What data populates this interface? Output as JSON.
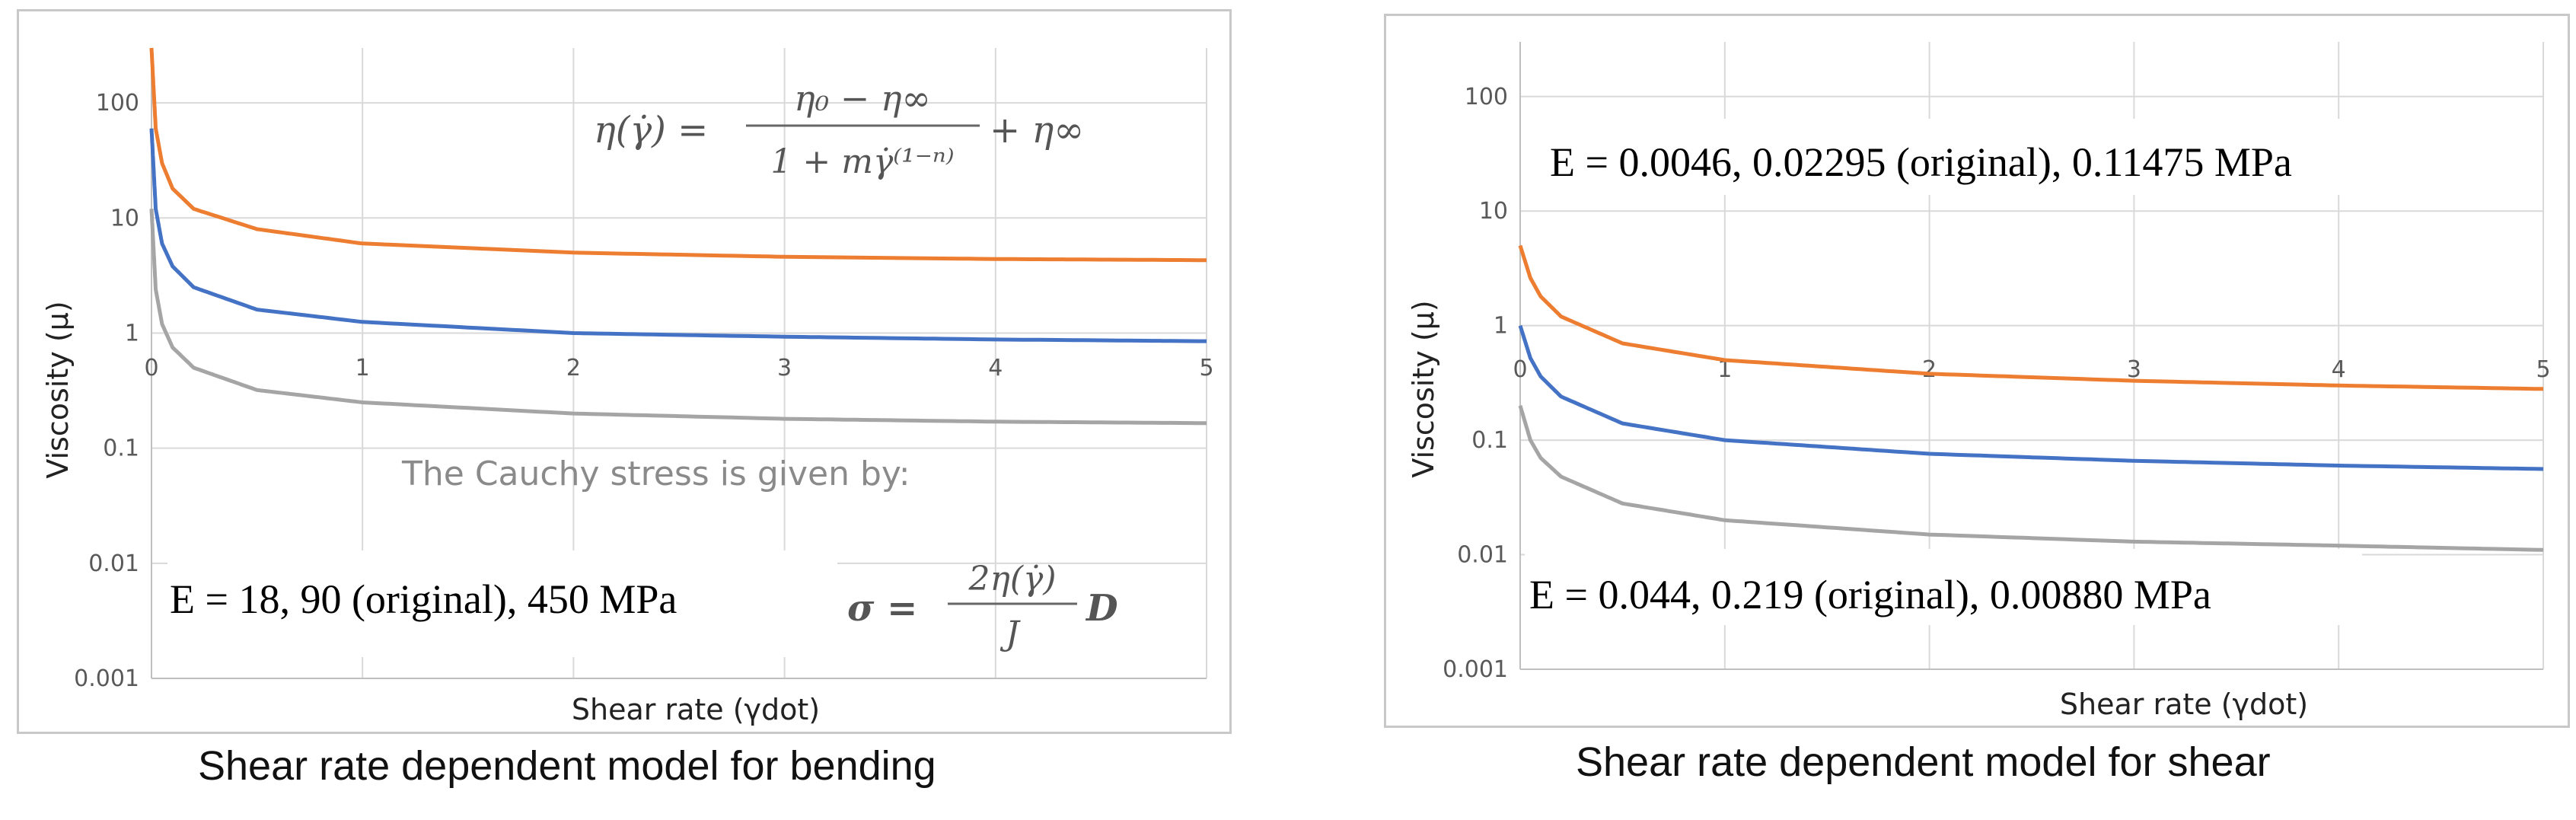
{
  "chart_data": [
    {
      "type": "line",
      "caption": "Shear rate dependent model for bending",
      "xlabel": "Shear rate (γdot)",
      "ylabel": "Viscosity (μ)",
      "xlim": [
        0,
        5
      ],
      "ylim": [
        0.001,
        300
      ],
      "yscale": "log",
      "x_ticks": [
        "0",
        "1",
        "2",
        "3",
        "4",
        "5"
      ],
      "y_ticks": [
        "0.001",
        "0.01",
        "0.1",
        "1",
        "10",
        "100"
      ],
      "grid": true,
      "series": [
        {
          "name": "orange",
          "color": "#ed7d31",
          "x": [
            0,
            0.02,
            0.05,
            0.1,
            0.2,
            0.5,
            1,
            2,
            3,
            4,
            5
          ],
          "values": [
            300,
            60,
            30,
            18,
            12,
            8,
            6,
            5,
            4.6,
            4.4,
            4.3
          ]
        },
        {
          "name": "blue",
          "color": "#4472c4",
          "x": [
            0,
            0.02,
            0.05,
            0.1,
            0.2,
            0.5,
            1,
            2,
            3,
            4,
            5
          ],
          "values": [
            60,
            12,
            6,
            3.8,
            2.5,
            1.6,
            1.25,
            1.0,
            0.93,
            0.88,
            0.85
          ]
        },
        {
          "name": "gray",
          "color": "#a5a5a5",
          "x": [
            0,
            0.02,
            0.05,
            0.1,
            0.2,
            0.5,
            1,
            2,
            3,
            4,
            5
          ],
          "values": [
            12,
            2.4,
            1.2,
            0.75,
            0.5,
            0.32,
            0.25,
            0.2,
            0.18,
            0.17,
            0.165
          ]
        }
      ],
      "annotations": {
        "e_label": "E = 18, 90 (original), 450 MPa",
        "cauchy_text": "The Cauchy stress is given by:",
        "formula_lhs": "η(γ̇) =",
        "formula_num": "η₀ − η∞",
        "formula_den": "1 + mγ̇⁽¹⁻ⁿ⁾",
        "formula_tail": "+ η∞",
        "sigma_lhs": "σ =",
        "sigma_num": "2η(γ̇)",
        "sigma_den": "J",
        "sigma_tail": "D"
      }
    },
    {
      "type": "line",
      "caption": "Shear rate dependent model for shear",
      "xlabel": "Shear rate (γdot)",
      "ylabel": "Viscosity (μ)",
      "xlim": [
        0,
        5
      ],
      "ylim": [
        0.001,
        300
      ],
      "yscale": "log",
      "x_ticks": [
        "0",
        "1",
        "2",
        "3",
        "4",
        "5"
      ],
      "y_ticks": [
        "0.001",
        "0.01",
        "0.1",
        "1",
        "10",
        "100"
      ],
      "grid": true,
      "series": [
        {
          "name": "orange",
          "color": "#ed7d31",
          "x": [
            0,
            0.05,
            0.1,
            0.2,
            0.5,
            1,
            2,
            3,
            4,
            5
          ],
          "values": [
            5,
            2.6,
            1.8,
            1.2,
            0.7,
            0.5,
            0.38,
            0.33,
            0.3,
            0.28
          ]
        },
        {
          "name": "blue",
          "color": "#4472c4",
          "x": [
            0,
            0.05,
            0.1,
            0.2,
            0.5,
            1,
            2,
            3,
            4,
            5
          ],
          "values": [
            1.0,
            0.52,
            0.36,
            0.24,
            0.14,
            0.1,
            0.076,
            0.066,
            0.06,
            0.056
          ]
        },
        {
          "name": "gray",
          "color": "#a5a5a5",
          "x": [
            0,
            0.05,
            0.1,
            0.2,
            0.5,
            1,
            2,
            3,
            4,
            5
          ],
          "values": [
            0.2,
            0.1,
            0.07,
            0.048,
            0.028,
            0.02,
            0.015,
            0.013,
            0.012,
            0.011
          ]
        }
      ],
      "annotations": {
        "e_label_top": "E = 0.0046, 0.02295 (original), 0.11475 MPa",
        "e_label_bottom": "E = 0.044, 0.219 (original), 0.00880 MPa"
      }
    }
  ]
}
